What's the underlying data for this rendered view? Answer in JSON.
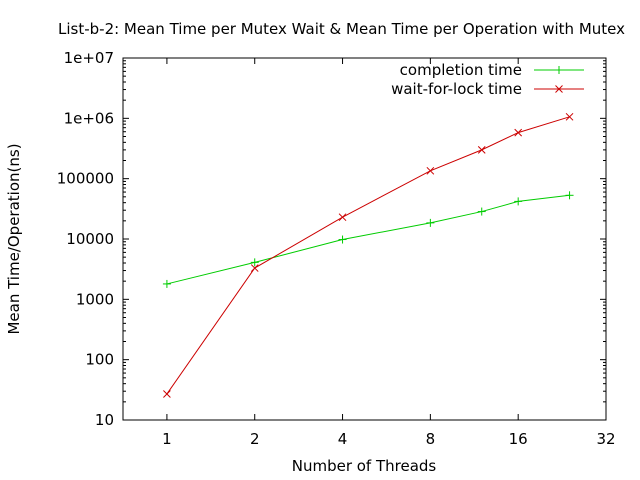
{
  "chart_data": {
    "type": "line",
    "title": "List-b-2: Mean Time per Mutex Wait & Mean Time per Operation with Mutex",
    "xlabel": "Number of Threads",
    "ylabel": "Mean Time/Operation(ns)",
    "x_scale": "log2",
    "y_scale": "log10",
    "xlim": [
      0.7071,
      32
    ],
    "ylim": [
      10,
      10000000
    ],
    "x_ticks": [
      {
        "value": 1,
        "label": "1"
      },
      {
        "value": 2,
        "label": "2"
      },
      {
        "value": 4,
        "label": "4"
      },
      {
        "value": 8,
        "label": "8"
      },
      {
        "value": 16,
        "label": "16"
      },
      {
        "value": 32,
        "label": "32"
      }
    ],
    "y_ticks": [
      {
        "value": 10,
        "label": "10"
      },
      {
        "value": 100,
        "label": "100"
      },
      {
        "value": 1000,
        "label": "1000"
      },
      {
        "value": 10000,
        "label": "10000"
      },
      {
        "value": 100000,
        "label": "100000"
      },
      {
        "value": 1000000,
        "label": "1e+06"
      },
      {
        "value": 10000000,
        "label": "1e+07"
      }
    ],
    "grid": false,
    "legend_position": "top-right",
    "series": [
      {
        "name": "completion time",
        "color": "#00cc00",
        "marker": "plus",
        "x": [
          1,
          2,
          4,
          8,
          12,
          16,
          24
        ],
        "y": [
          1800,
          4100,
          9800,
          18500,
          28500,
          42000,
          53000
        ]
      },
      {
        "name": "wait-for-lock time",
        "color": "#cc0000",
        "marker": "cross",
        "x": [
          1,
          2,
          4,
          8,
          12,
          16,
          24
        ],
        "y": [
          27,
          3300,
          23000,
          135000,
          300000,
          580000,
          1060000
        ]
      }
    ]
  }
}
